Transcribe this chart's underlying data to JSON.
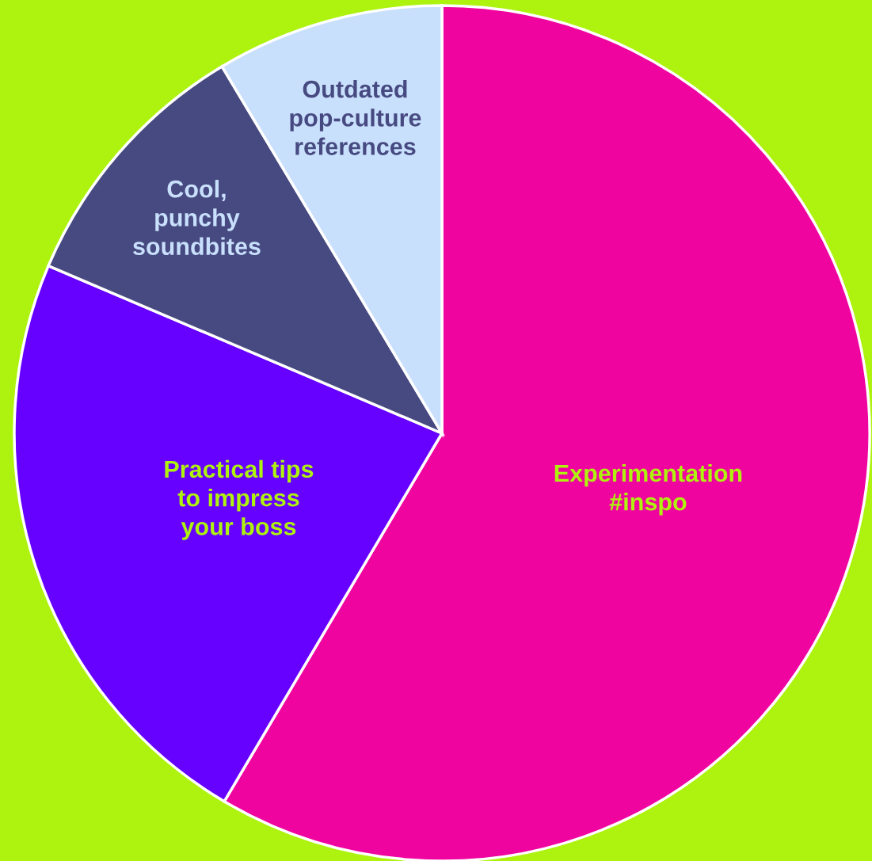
{
  "chart_data": {
    "type": "pie",
    "categories": [
      "Experimentation\n#inspo",
      "Practical tips\nto impress\nyour boss",
      "Cool,\npunchy\nsoundbites",
      "Outdated\npop-culture\nreferences"
    ],
    "values": [
      58.5,
      22.9,
      10.0,
      8.6
    ],
    "colors": [
      "#f0049f",
      "#6600ff",
      "#474a80",
      "#c9e0fd"
    ]
  }
}
